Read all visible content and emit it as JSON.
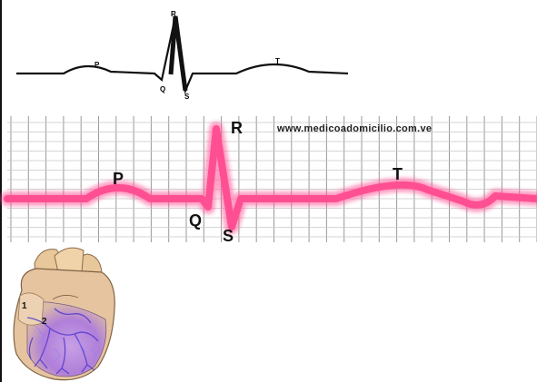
{
  "schematic": {
    "labels": {
      "p": "P",
      "q": "Q",
      "r": "R",
      "s": "S",
      "t": "T"
    }
  },
  "strip": {
    "website": "www.medicoadomicilio.com.ve",
    "labels": {
      "p": "P",
      "q": "Q",
      "r": "R",
      "s": "S",
      "t": "T"
    },
    "trace_color": "#ff4f93",
    "grid_color": "#9a9a9a"
  },
  "heart": {
    "markers": {
      "one": "1",
      "two": "2"
    }
  }
}
